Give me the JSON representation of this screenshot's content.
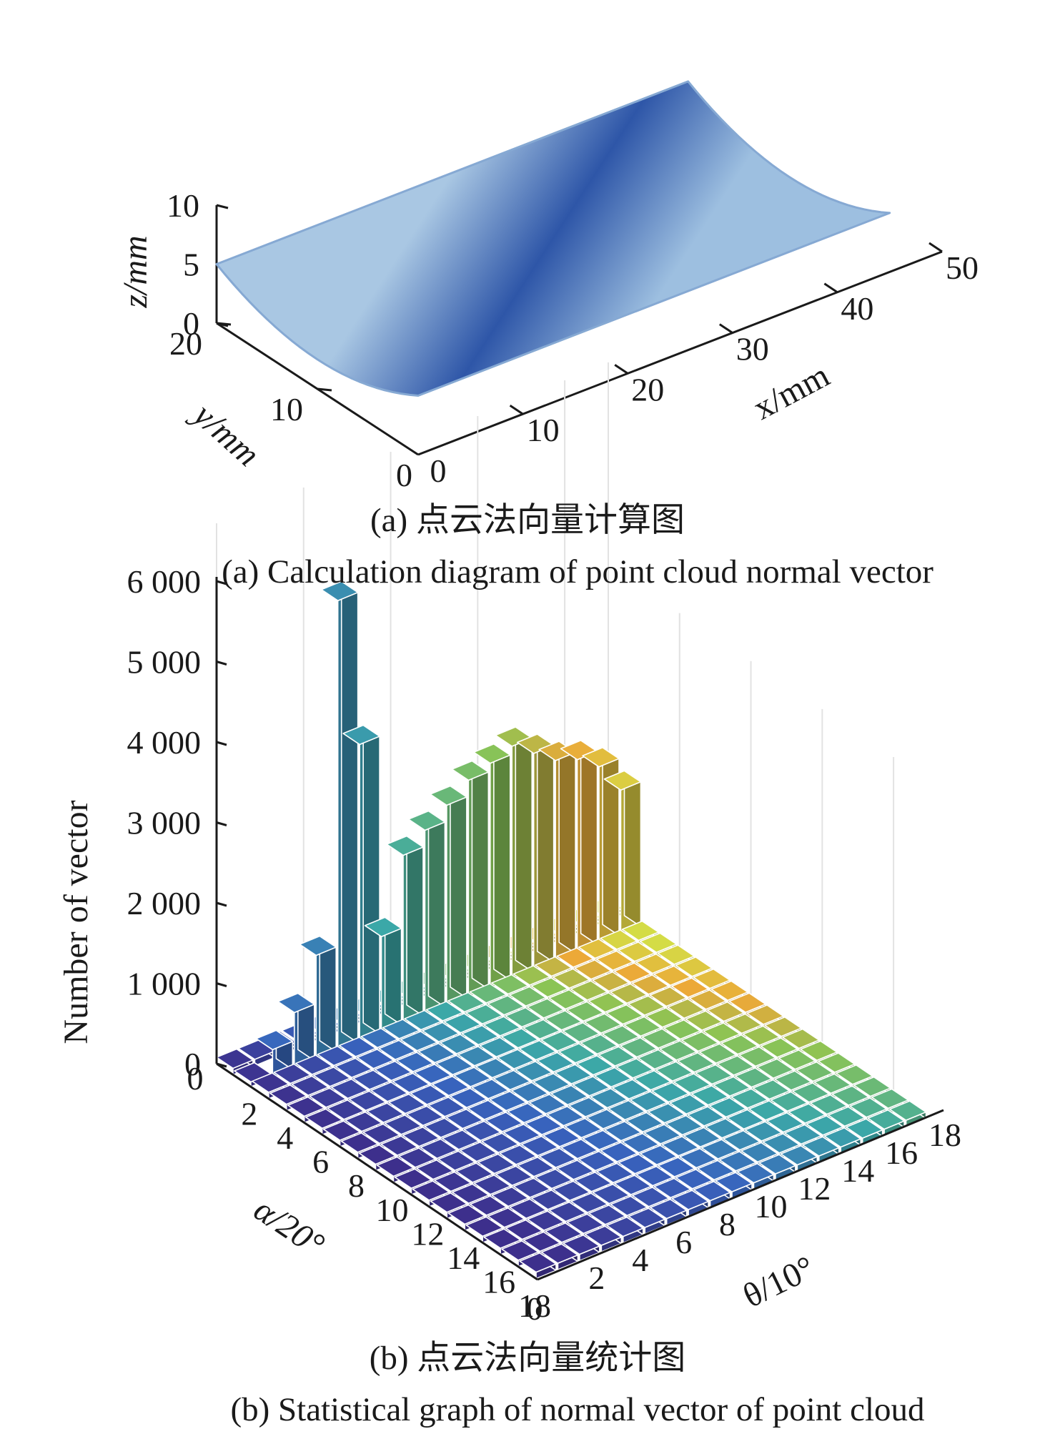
{
  "figure": {
    "caption_a_cn": "(a) 点云法向量计算图",
    "caption_a_en": "(a) Calculation diagram of point cloud normal vector",
    "caption_b_cn": "(b) 点云法向量统计图",
    "caption_b_en": "(b) Statistical graph of normal vector of point cloud"
  },
  "colors": {
    "surface_light": "#a9c7e3",
    "surface_dark": "#2e56a8",
    "bar_low": "#3d2f8c",
    "bar_mid": "#3ba8a8",
    "bar_high": "#f0a838"
  },
  "chart_data": [
    {
      "type": "surface",
      "title": "",
      "xlabel": "x/mm",
      "ylabel": "y/mm",
      "zlabel": "z/mm",
      "x_ticks": [
        "0",
        "10",
        "20",
        "30",
        "40",
        "50"
      ],
      "y_ticks": [
        "0",
        "10",
        "20"
      ],
      "z_ticks": [
        "0",
        "5",
        "10"
      ],
      "xlim": [
        0,
        50
      ],
      "ylim": [
        0,
        20
      ],
      "zlim": [
        0,
        10
      ],
      "surface": {
        "description_shape": "concave trough",
        "x": [
          0,
          45
        ],
        "y": [
          0,
          20
        ],
        "z_edge": 5,
        "z_center": 2.5
      }
    },
    {
      "type": "bar3d",
      "title": "",
      "xlabel": "θ/10°",
      "ylabel": "α/20°",
      "zlabel": "Number of vector",
      "theta_ticks": [
        "0",
        "2",
        "4",
        "6",
        "8",
        "10",
        "12",
        "14",
        "16",
        "18"
      ],
      "alpha_ticks": [
        "0",
        "2",
        "4",
        "6",
        "8",
        "10",
        "12",
        "14",
        "16",
        "18"
      ],
      "z_ticks": [
        "0",
        "1 000",
        "2 000",
        "3 000",
        "4 000",
        "5 000",
        "6 000"
      ],
      "zlim": [
        0,
        6000
      ],
      "theta_bins": 18,
      "alpha_bins": 18,
      "series": [
        {
          "alpha_bin": 1,
          "values": [
            60,
            350,
            700,
            1300,
            5600,
            3700,
            1200,
            2100,
            2300,
            2500,
            2700,
            2800,
            2900,
            2700,
            2500,
            2400,
            2200,
            1800
          ]
        }
      ],
      "other_rows_value": 80
    }
  ]
}
